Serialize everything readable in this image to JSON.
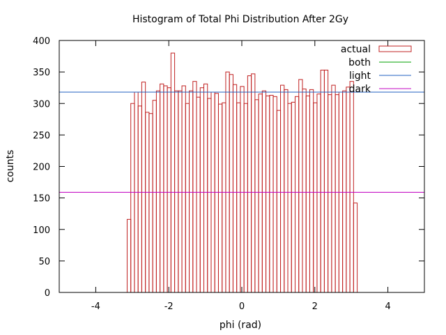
{
  "chart_data": {
    "type": "bar",
    "title": "Histogram of Total Phi Distribution After 2Gy",
    "xlabel": "phi (rad)",
    "ylabel": "counts",
    "xlim": [
      -5,
      5
    ],
    "ylim": [
      0,
      400
    ],
    "x_ticks": [
      -4,
      -2,
      0,
      2,
      4
    ],
    "y_ticks": [
      0,
      50,
      100,
      150,
      200,
      250,
      300,
      350,
      400
    ],
    "grid": false,
    "legend_position": "top-right",
    "histogram": {
      "name": "actual",
      "color": "#c02020",
      "bin_start": -3.14,
      "bin_width": 0.1,
      "values": [
        116,
        300,
        318,
        296,
        334,
        286,
        284,
        305,
        320,
        331,
        328,
        325,
        380,
        320,
        320,
        328,
        300,
        320,
        335,
        310,
        325,
        331,
        308,
        318,
        316,
        299,
        301,
        350,
        346,
        330,
        301,
        327,
        300,
        344,
        347,
        306,
        315,
        320,
        312,
        313,
        311,
        289,
        329,
        322,
        300,
        302,
        311,
        338,
        323,
        312,
        322,
        301,
        315,
        353,
        353,
        314,
        329,
        314,
        318,
        320,
        326,
        335,
        142
      ]
    },
    "reference_lines": [
      {
        "name": "both",
        "value": 318,
        "color": "#00a000"
      },
      {
        "name": "light",
        "value": 318,
        "color": "#2060c0"
      },
      {
        "name": "dark",
        "value": 159,
        "color": "#c000c0"
      }
    ]
  }
}
